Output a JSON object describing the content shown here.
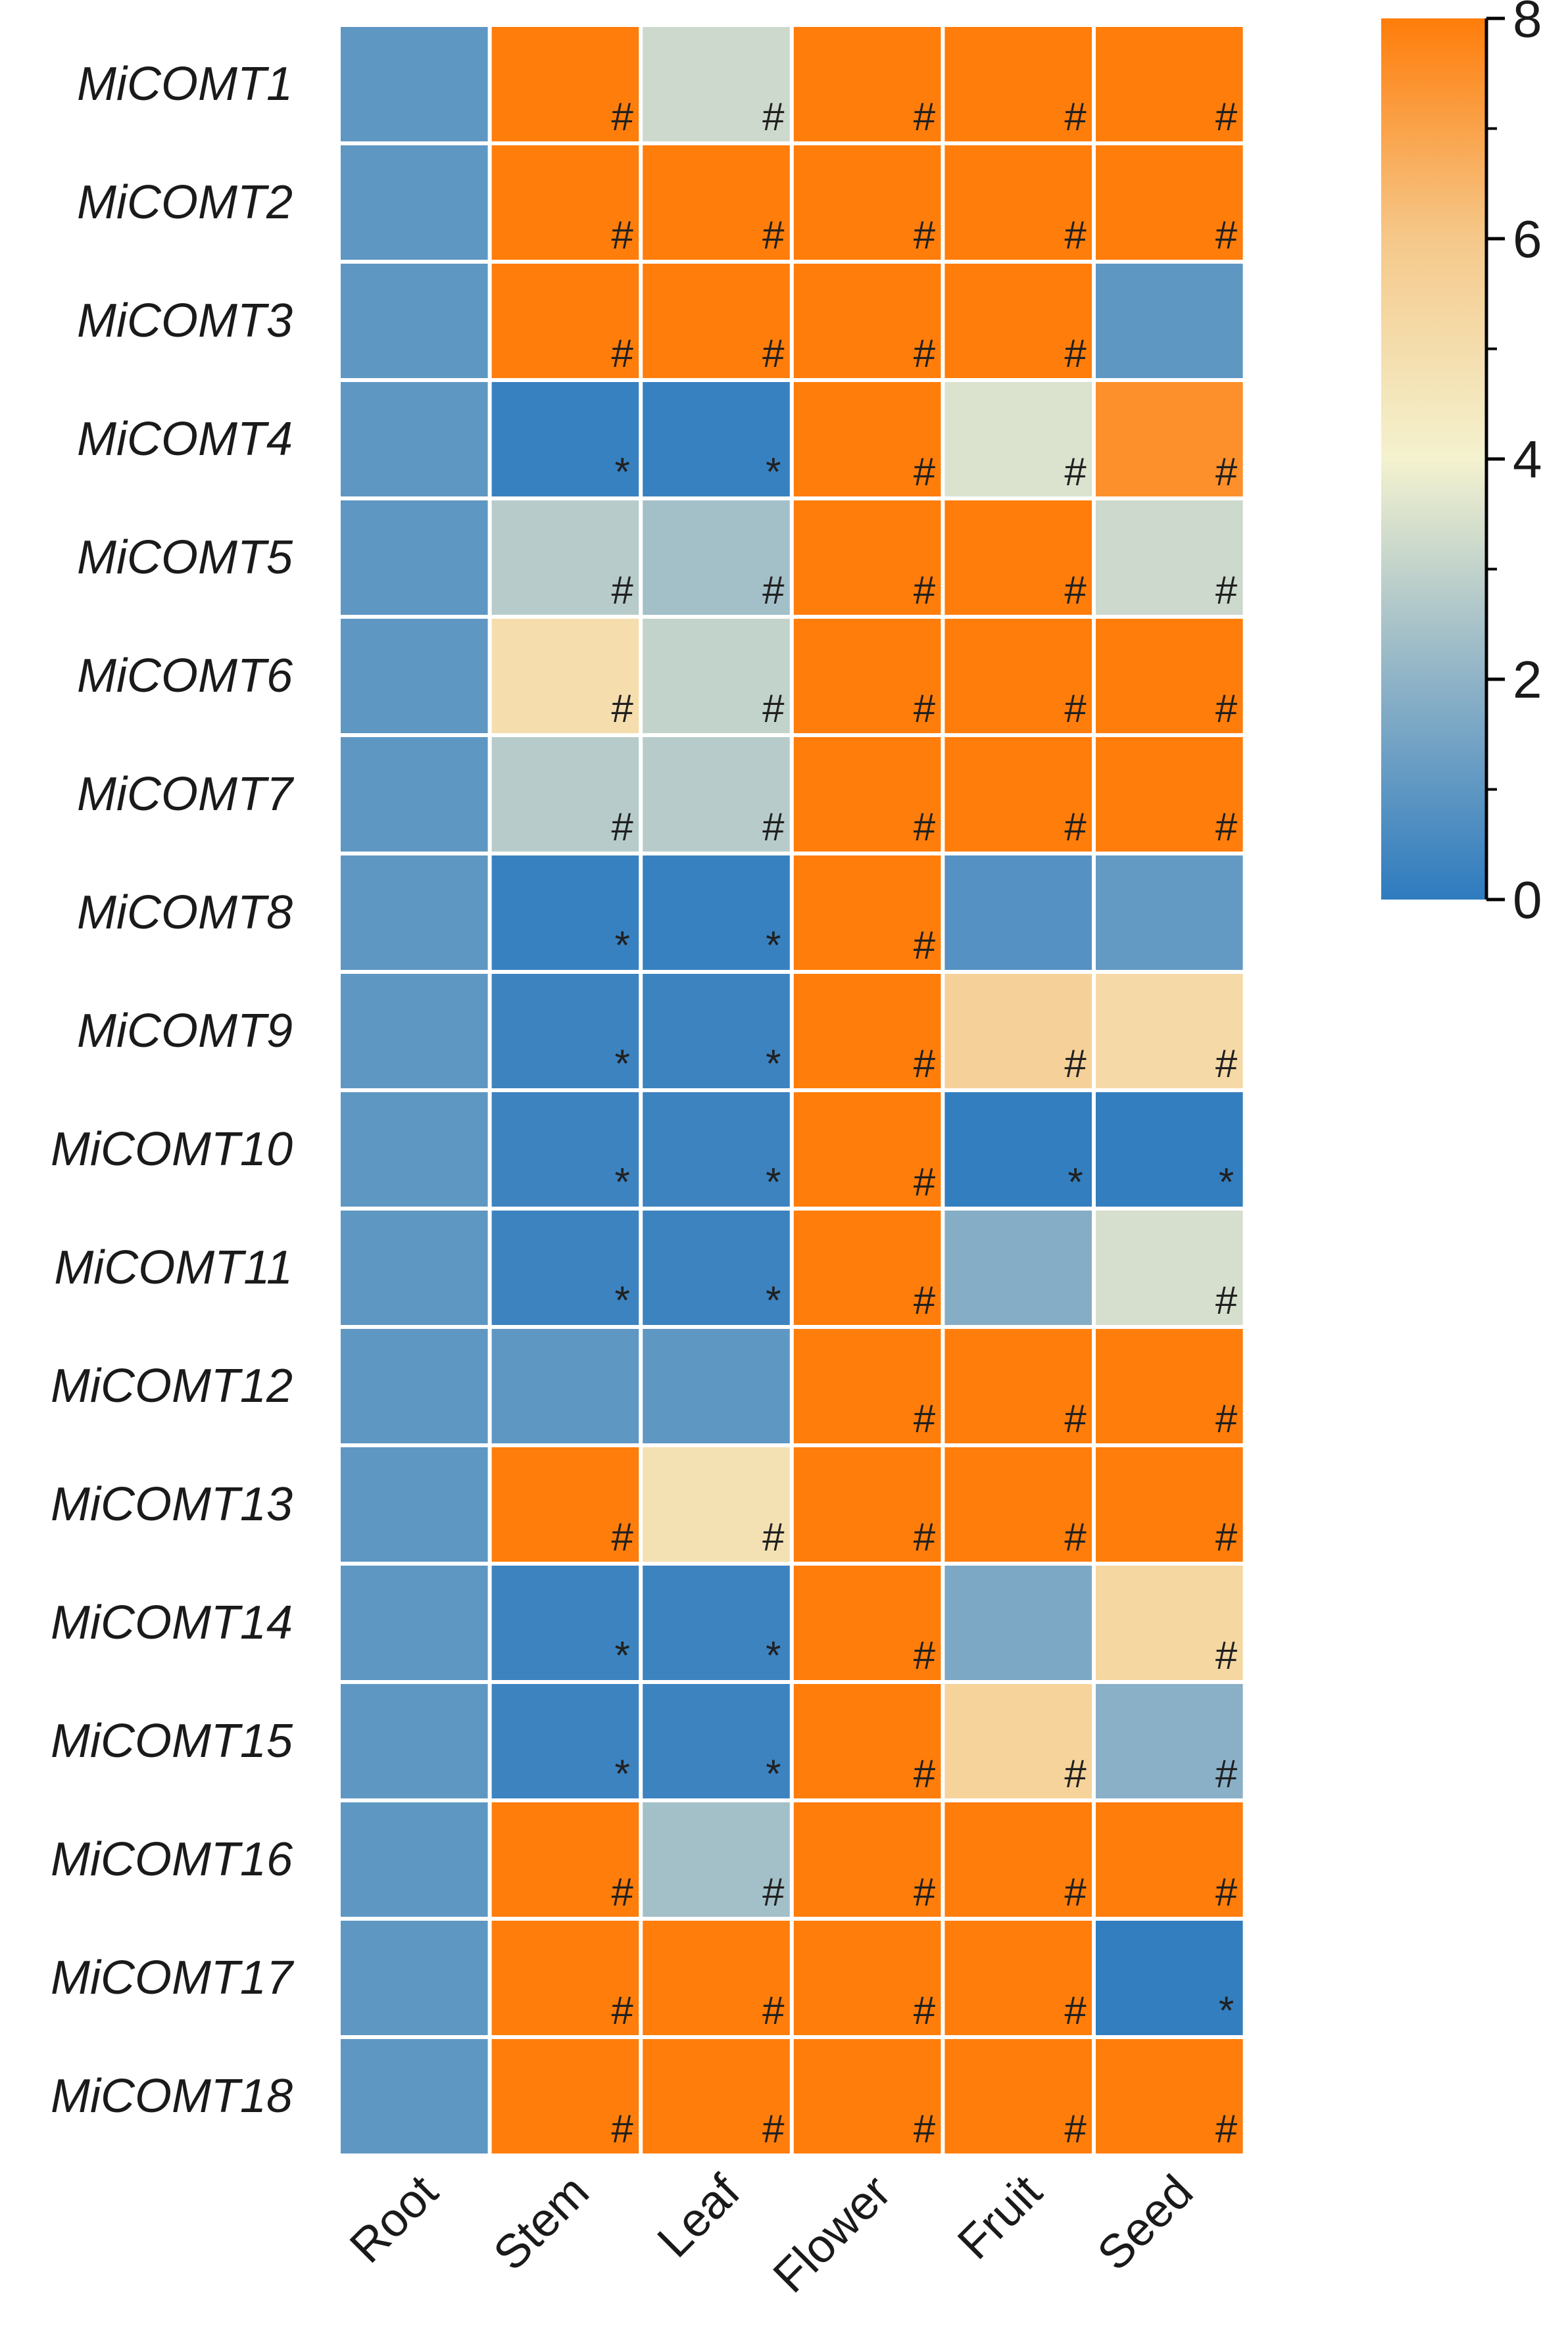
{
  "chart_data": {
    "type": "heatmap",
    "title": "",
    "xlabel": "",
    "ylabel": "",
    "columns": [
      "Root",
      "Stem",
      "Leaf",
      "Flower",
      "Fruit",
      "Seed"
    ],
    "rows": [
      "MiCOMT1",
      "MiCOMT2",
      "MiCOMT3",
      "MiCOMT4",
      "MiCOMT5",
      "MiCOMT6",
      "MiCOMT7",
      "MiCOMT8",
      "MiCOMT9",
      "MiCOMT10",
      "MiCOMT11",
      "MiCOMT12",
      "MiCOMT13",
      "MiCOMT14",
      "MiCOMT15",
      "MiCOMT16",
      "MiCOMT17",
      "MiCOMT18"
    ],
    "values": [
      [
        1,
        8,
        3.2,
        8,
        8,
        8
      ],
      [
        1,
        8,
        8,
        8,
        8,
        8
      ],
      [
        1,
        8,
        8,
        8,
        8,
        1
      ],
      [
        1,
        0.2,
        0.2,
        8,
        3.5,
        7.5
      ],
      [
        1,
        2.8,
        2.4,
        8,
        8,
        3.2
      ],
      [
        1,
        5,
        3,
        8,
        8,
        8
      ],
      [
        1,
        2.8,
        2.8,
        8,
        8,
        8
      ],
      [
        1,
        0.2,
        0.2,
        8,
        0.8,
        1.1
      ],
      [
        1,
        0.3,
        0.3,
        8,
        5.6,
        5.2
      ],
      [
        1,
        0.3,
        0.3,
        8,
        0.1,
        0.1
      ],
      [
        1,
        0.3,
        0.3,
        8,
        1.8,
        3.4
      ],
      [
        1,
        1,
        1,
        8,
        8,
        8
      ],
      [
        1,
        8,
        4.8,
        8,
        8,
        8
      ],
      [
        1,
        0.3,
        0.3,
        8,
        1.6,
        5.3
      ],
      [
        1,
        0.3,
        0.3,
        8,
        5.5,
        1.9
      ],
      [
        1,
        8,
        2.4,
        8,
        8,
        8
      ],
      [
        1,
        8,
        8,
        8,
        8,
        0.1
      ],
      [
        1,
        8,
        8,
        8,
        8,
        8
      ]
    ],
    "marks": [
      [
        "",
        "#",
        "#",
        "#",
        "#",
        "#"
      ],
      [
        "",
        "#",
        "#",
        "#",
        "#",
        "#"
      ],
      [
        "",
        "#",
        "#",
        "#",
        "#",
        ""
      ],
      [
        "",
        "*",
        "*",
        "#",
        "#",
        "#"
      ],
      [
        "",
        "#",
        "#",
        "#",
        "#",
        "#"
      ],
      [
        "",
        "#",
        "#",
        "#",
        "#",
        "#"
      ],
      [
        "",
        "#",
        "#",
        "#",
        "#",
        "#"
      ],
      [
        "",
        "*",
        "*",
        "#",
        "",
        ""
      ],
      [
        "",
        "*",
        "*",
        "#",
        "#",
        "#"
      ],
      [
        "",
        "*",
        "*",
        "#",
        "*",
        "*"
      ],
      [
        "",
        "*",
        "*",
        "#",
        "",
        "#"
      ],
      [
        "",
        "",
        "",
        "#",
        "#",
        "#"
      ],
      [
        "",
        "#",
        "#",
        "#",
        "#",
        "#"
      ],
      [
        "",
        "*",
        "*",
        "#",
        "",
        "#"
      ],
      [
        "",
        "*",
        "*",
        "#",
        "#",
        "#"
      ],
      [
        "",
        "#",
        "#",
        "#",
        "#",
        "#"
      ],
      [
        "",
        "#",
        "#",
        "#",
        "#",
        "*"
      ],
      [
        "",
        "#",
        "#",
        "#",
        "#",
        "#"
      ]
    ],
    "colorbar": {
      "min": 0,
      "max": 8,
      "ticks": [
        0,
        2,
        4,
        6,
        8
      ],
      "colors": [
        "#2e7bbf",
        "#8fb3c7",
        "#f4f2cf",
        "#f5c88a",
        "#ff7d0a"
      ]
    },
    "legend_position": "top-right",
    "grid": false
  }
}
